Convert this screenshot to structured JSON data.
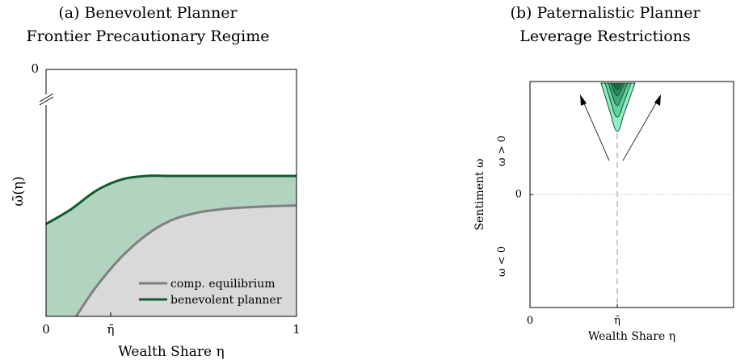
{
  "panel_a": {
    "title_line1": "(a) Benevolent Planner",
    "title_line2": "Frontier Precautionary Regime",
    "xlabel": "Wealth Share η",
    "ylabel": "ω̄(η)",
    "x_ticks": [
      "0",
      "η̄",
      "1"
    ],
    "y_ticks": [
      "0"
    ],
    "legend": [
      "comp. equilibrium",
      "benevolent planner"
    ],
    "colors": {
      "comp_equilibrium": "#808080",
      "benevolent_planner": "#0f5c2e",
      "planner_fill": "#b3d3c1",
      "equilibrium_fill": "#d9d9d9"
    }
  },
  "panel_b": {
    "title_line1": "(b) Paternalistic Planner",
    "title_line2": "Leverage Restrictions",
    "xlabel": "Wealth Share η",
    "ylabel": "Sentiment ω",
    "x_ticks": [
      "0",
      "η̄"
    ],
    "y_ticks": [
      "0"
    ],
    "region_labels": [
      "ω > 0",
      "ω < 0"
    ],
    "colors": {
      "contour_levels": [
        "#8ef0c4",
        "#62d4a0",
        "#3ea878",
        "#2a8a5c",
        "#1a6a42"
      ]
    }
  },
  "chart_data": [
    {
      "type": "area",
      "title": "(a) Benevolent Planner Frontier Precautionary Regime",
      "xlabel": "Wealth Share η",
      "ylabel": "ω̄(η)",
      "xlim": [
        0,
        1
      ],
      "x_tick_labels": [
        "0",
        "η̄",
        "1"
      ],
      "y_tick_labels": [
        "0"
      ],
      "y_axis_break": true,
      "legend_position": "bottom-right",
      "grid": false,
      "series": [
        {
          "name": "comp. equilibrium",
          "x": [
            0.12,
            0.2,
            0.3,
            0.4,
            0.5,
            0.6,
            0.7,
            0.8,
            0.9,
            1.0
          ],
          "y": [
            -0.58,
            -0.5,
            -0.42,
            -0.36,
            -0.32,
            -0.3,
            -0.29,
            -0.285,
            -0.282,
            -0.28
          ]
        },
        {
          "name": "benevolent planner",
          "x": [
            0.0,
            0.1,
            0.2,
            0.3,
            0.4,
            0.5,
            0.6,
            0.7,
            0.8,
            0.9,
            1.0
          ],
          "y": [
            -0.33,
            -0.29,
            -0.24,
            -0.21,
            -0.2,
            -0.2,
            -0.2,
            -0.2,
            -0.2,
            -0.2,
            -0.2
          ]
        }
      ]
    },
    {
      "type": "heatmap",
      "title": "(b) Paternalistic Planner Leverage Restrictions",
      "xlabel": "Wealth Share η",
      "ylabel": "Sentiment ω",
      "x_tick_labels": [
        "0",
        "η̄"
      ],
      "y_tick_labels": [
        "0"
      ],
      "region_labels": [
        "ω > 0",
        "ω < 0"
      ],
      "contour_levels": 5,
      "grid": false
    }
  ]
}
